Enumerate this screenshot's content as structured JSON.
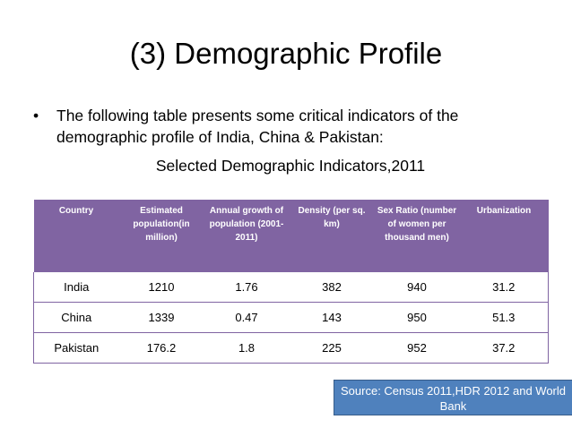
{
  "slide": {
    "title": "(3) Demographic Profile",
    "bullet_symbol": "•",
    "bullet_text": "The following table presents some critical indicators of the demographic profile of India, China & Pakistan:",
    "subtitle": "Selected Demographic Indicators,2011"
  },
  "table": {
    "headers": [
      "Country",
      "Estimated population(in million)",
      "Annual growth of population (2001-2011)",
      "Density (per sq. km)",
      "Sex Ratio (number of women per thousand men)",
      "Urbanization"
    ],
    "rows": [
      [
        "India",
        "1210",
        "1.76",
        "382",
        "940",
        "31.2"
      ],
      [
        "China",
        "1339",
        "0.47",
        "143",
        "950",
        "51.3"
      ],
      [
        "Pakistan",
        "176.2",
        "1.8",
        "225",
        "952",
        "37.2"
      ]
    ]
  },
  "source": {
    "text": "Source: Census 2011,HDR 2012 and World Bank"
  },
  "colors": {
    "header_bg": "#8064a2",
    "source_bg": "#4f81bd"
  }
}
